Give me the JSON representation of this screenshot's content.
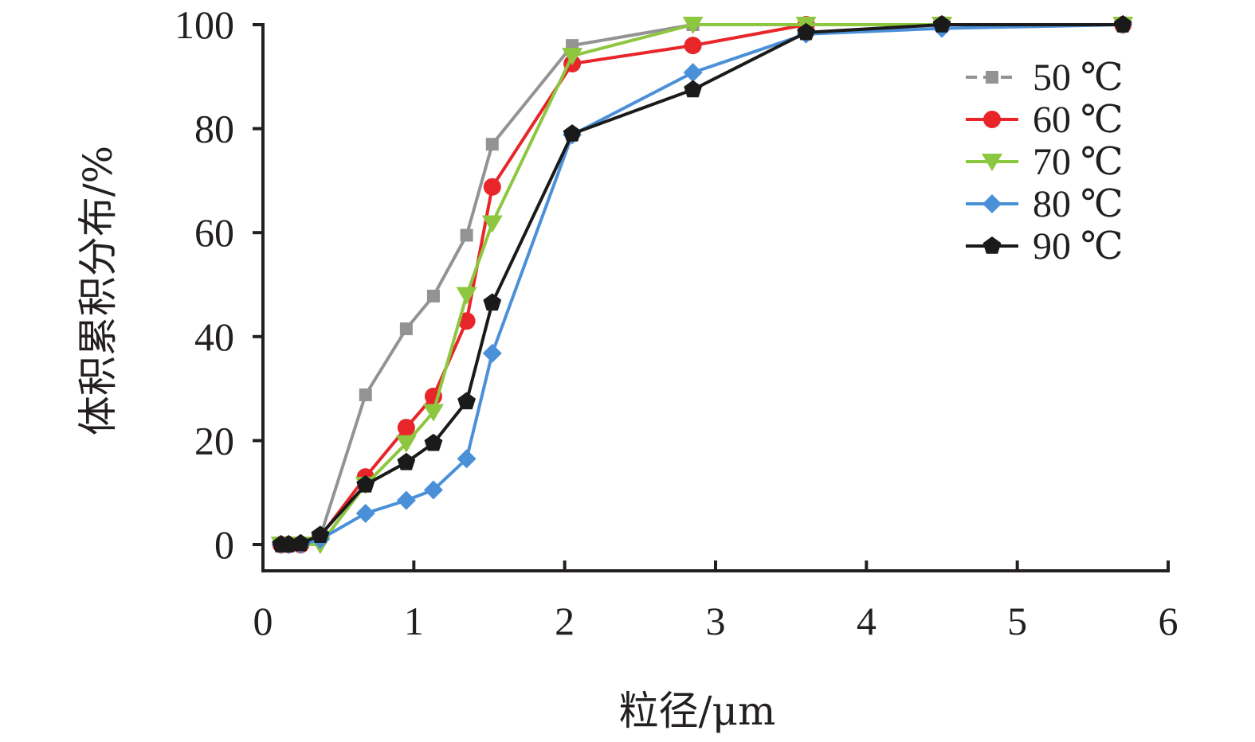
{
  "chart_data": {
    "type": "line",
    "xlabel": "粒径/μm",
    "ylabel": "体积累积分布/%",
    "xlim": [
      0,
      6
    ],
    "ylim": [
      0,
      100
    ],
    "xticks": [
      "0",
      "1",
      "2",
      "3",
      "4",
      "5",
      "6"
    ],
    "yticks": [
      "0",
      "20",
      "40",
      "60",
      "80",
      "100"
    ],
    "grid": false,
    "legend_position": "top-right",
    "series": [
      {
        "name": "50 ℃",
        "color": "#939393",
        "marker": "square",
        "dashed": true,
        "points": [
          [
            0.12,
            0
          ],
          [
            0.17,
            0
          ],
          [
            0.25,
            0
          ],
          [
            0.38,
            1.5
          ],
          [
            0.68,
            28.8
          ],
          [
            0.95,
            41.5
          ],
          [
            1.13,
            47.8
          ],
          [
            1.35,
            59.5
          ],
          [
            1.52,
            77
          ],
          [
            2.05,
            96
          ],
          [
            2.85,
            100
          ],
          [
            3.6,
            100
          ],
          [
            4.5,
            100
          ],
          [
            5.7,
            100
          ]
        ]
      },
      {
        "name": "60 ℃",
        "color": "#e8262a",
        "marker": "circle",
        "dashed": false,
        "points": [
          [
            0.12,
            0
          ],
          [
            0.17,
            0
          ],
          [
            0.25,
            0
          ],
          [
            0.38,
            1.5
          ],
          [
            0.68,
            13
          ],
          [
            0.95,
            22.5
          ],
          [
            1.13,
            28.5
          ],
          [
            1.35,
            43
          ],
          [
            1.52,
            68.8
          ],
          [
            2.05,
            92.5
          ],
          [
            2.85,
            96
          ],
          [
            3.6,
            100
          ],
          [
            4.5,
            100
          ],
          [
            5.7,
            100
          ]
        ]
      },
      {
        "name": "70 ℃",
        "color": "#8dc63f",
        "marker": "triangle-down",
        "dashed": false,
        "points": [
          [
            0.12,
            0
          ],
          [
            0.17,
            0
          ],
          [
            0.25,
            0
          ],
          [
            0.38,
            0
          ],
          [
            0.68,
            11.5
          ],
          [
            0.95,
            19.5
          ],
          [
            1.13,
            25.5
          ],
          [
            1.35,
            48
          ],
          [
            1.52,
            61.8
          ],
          [
            2.05,
            94
          ],
          [
            2.85,
            100
          ],
          [
            3.6,
            100
          ],
          [
            4.5,
            100
          ],
          [
            5.7,
            100
          ]
        ]
      },
      {
        "name": "80 ℃",
        "color": "#4a90d9",
        "marker": "diamond",
        "dashed": false,
        "points": [
          [
            0.12,
            0
          ],
          [
            0.17,
            0
          ],
          [
            0.25,
            0
          ],
          [
            0.38,
            1
          ],
          [
            0.68,
            6
          ],
          [
            0.95,
            8.5
          ],
          [
            1.13,
            10.5
          ],
          [
            1.35,
            16.5
          ],
          [
            1.52,
            36.8
          ],
          [
            2.05,
            78.8
          ],
          [
            2.85,
            90.8
          ],
          [
            3.6,
            98.2
          ],
          [
            4.5,
            99.3
          ],
          [
            5.7,
            100
          ]
        ]
      },
      {
        "name": "90 ℃",
        "color": "#1a1a1a",
        "marker": "pentagon",
        "dashed": false,
        "points": [
          [
            0.12,
            0
          ],
          [
            0.17,
            0
          ],
          [
            0.25,
            0.2
          ],
          [
            0.38,
            1.8
          ],
          [
            0.68,
            11.5
          ],
          [
            0.95,
            15.8
          ],
          [
            1.13,
            19.5
          ],
          [
            1.35,
            27.5
          ],
          [
            1.52,
            46.5
          ],
          [
            2.05,
            79
          ],
          [
            2.85,
            87.5
          ],
          [
            3.6,
            98.5
          ],
          [
            4.5,
            100
          ],
          [
            5.7,
            100
          ]
        ]
      }
    ]
  }
}
